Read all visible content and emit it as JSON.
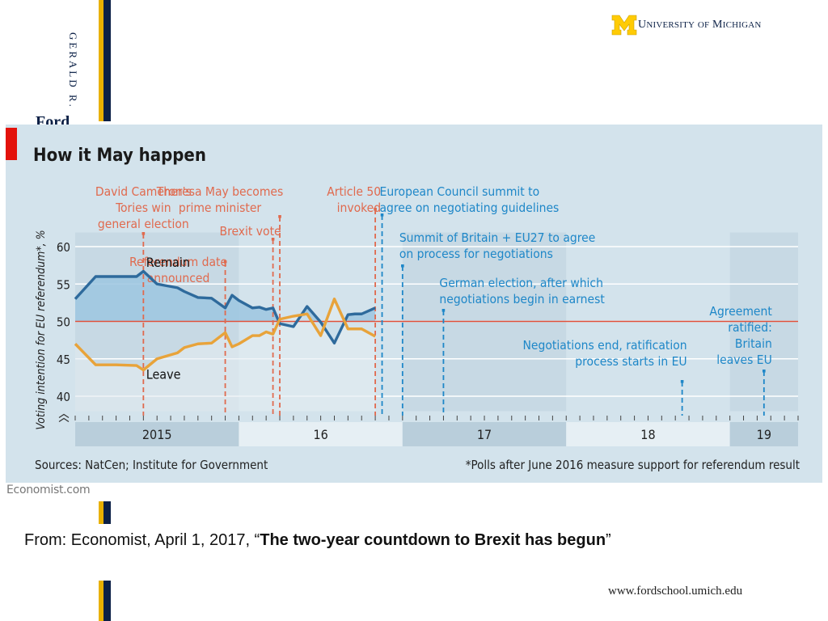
{
  "branding": {
    "school_vertical": "GERALD R.",
    "school_fragment": "Ford",
    "university_U": "U",
    "university_niversity": "NIVERSITY",
    "university_of": "OF",
    "university_M": "M",
    "university_ichigan": "ICHIGAN",
    "maize": "#FFCB05",
    "navy": "#0B2046",
    "url": "www.fordschool.umich.edu"
  },
  "chart_data": {
    "type": "line",
    "title": "How it May happen",
    "ylabel": "Voting intention for EU referendum*, %",
    "ylim": [
      38,
      62
    ],
    "yticks": [
      40,
      45,
      50,
      55,
      60
    ],
    "xlim": [
      0,
      53
    ],
    "year_labels": [
      {
        "label": "2015",
        "start": 0,
        "end": 12
      },
      {
        "label": "16",
        "start": 12,
        "end": 24
      },
      {
        "label": "17",
        "start": 24,
        "end": 36
      },
      {
        "label": "18",
        "start": 36,
        "end": 48
      },
      {
        "label": "19",
        "start": 48,
        "end": 53
      }
    ],
    "reference_line": 50,
    "series": [
      {
        "name": "Remain",
        "label": "Remain",
        "color": "#2E6A9C",
        "x": [
          0,
          1.5,
          3,
          4.5,
          5,
          6,
          7.5,
          8,
          9,
          10,
          11,
          11.5,
          12,
          13,
          13.5,
          14,
          14.5,
          15,
          16,
          17,
          18,
          19,
          20,
          20.5,
          21,
          22
        ],
        "y": [
          53,
          56,
          56,
          56,
          56.7,
          55,
          54.5,
          54,
          53.2,
          53.1,
          51.8,
          53.5,
          52.8,
          51.8,
          51.9,
          51.6,
          51.8,
          49.7,
          49.3,
          52,
          49.9,
          47.1,
          50.9,
          51,
          51,
          51.8
        ]
      },
      {
        "name": "Leave",
        "label": "Leave",
        "color": "#E8A33A",
        "x": [
          0,
          1.5,
          3,
          4.5,
          5,
          6,
          7.5,
          8,
          9,
          10,
          11,
          11.5,
          12,
          13,
          13.5,
          14,
          14.5,
          15,
          16,
          17,
          18,
          19,
          20,
          20.5,
          21,
          22
        ],
        "y": [
          47,
          44.2,
          44.2,
          44.1,
          43.5,
          45,
          45.8,
          46.5,
          47,
          47.1,
          48.5,
          46.6,
          47,
          48.1,
          48.1,
          48.6,
          48.3,
          50.3,
          50.7,
          51,
          48.1,
          53,
          49,
          49,
          49,
          48
        ]
      }
    ],
    "events": [
      {
        "text": "David Cameron's Tories win general election",
        "lines": [
          "David Cameron's",
          "Tories win",
          "general election"
        ],
        "x": 5,
        "color": "#E06A4E",
        "style": "dashed",
        "kind": "past"
      },
      {
        "text": "Referendum date announced",
        "lines": [
          "Referendum date",
          "announced"
        ],
        "x": 11,
        "color": "#E06A4E",
        "style": "dashed",
        "kind": "past"
      },
      {
        "text": "Brexit vote",
        "lines": [
          "Brexit vote"
        ],
        "x": 14.5,
        "color": "#E06A4E",
        "style": "dashed",
        "kind": "past"
      },
      {
        "text": "Theresa May becomes prime minister",
        "lines": [
          "Theresa May becomes",
          "prime minister"
        ],
        "x": 15,
        "color": "#E06A4E",
        "style": "dashed",
        "kind": "past"
      },
      {
        "text": "Article 50 invoked",
        "lines": [
          "Article 50",
          "invoked"
        ],
        "x": 22,
        "color": "#E06A4E",
        "style": "dashed",
        "kind": "past"
      },
      {
        "text": "European Council summit to agree on negotiating guidelines",
        "lines": [
          "European Council summit to",
          "agree on negotiating guidelines"
        ],
        "x": 22.5,
        "color": "#1E87C8",
        "style": "dashed",
        "kind": "future"
      },
      {
        "text": "Summit of Britain + EU27 to agree on process for negotiations",
        "lines": [
          "Summit of Britain + EU27 to agree",
          "on process for negotiations"
        ],
        "x": 24,
        "color": "#1E87C8",
        "style": "dashed",
        "kind": "future"
      },
      {
        "text": "German election, after which negotiations begin in earnest",
        "lines": [
          "German election, after which",
          "negotiations begin in earnest"
        ],
        "x": 27,
        "color": "#1E87C8",
        "style": "dashed",
        "kind": "future"
      },
      {
        "text": "Negotiations end, ratification process starts in EU",
        "lines": [
          "Negotiations end, ratification",
          "process starts in EU"
        ],
        "x": 44.5,
        "color": "#1E87C8",
        "style": "dashed",
        "kind": "future"
      },
      {
        "text": "Agreement ratified: Britain leaves EU",
        "lines": [
          "Agreement",
          "ratified:",
          "Britain",
          "leaves EU"
        ],
        "x": 50.5,
        "color": "#1E87C8",
        "style": "dashed",
        "kind": "future"
      }
    ],
    "sources": "Sources: NatCen; Institute for Government",
    "footnote": "*Polls after June 2016 measure support for referendum result",
    "grid": true
  },
  "credit": "Economist.com",
  "citation": {
    "prefix": "From:  Economist, April 1, 2017, “",
    "title": "The two-year countdown to Brexit has begun",
    "suffix": "”"
  }
}
